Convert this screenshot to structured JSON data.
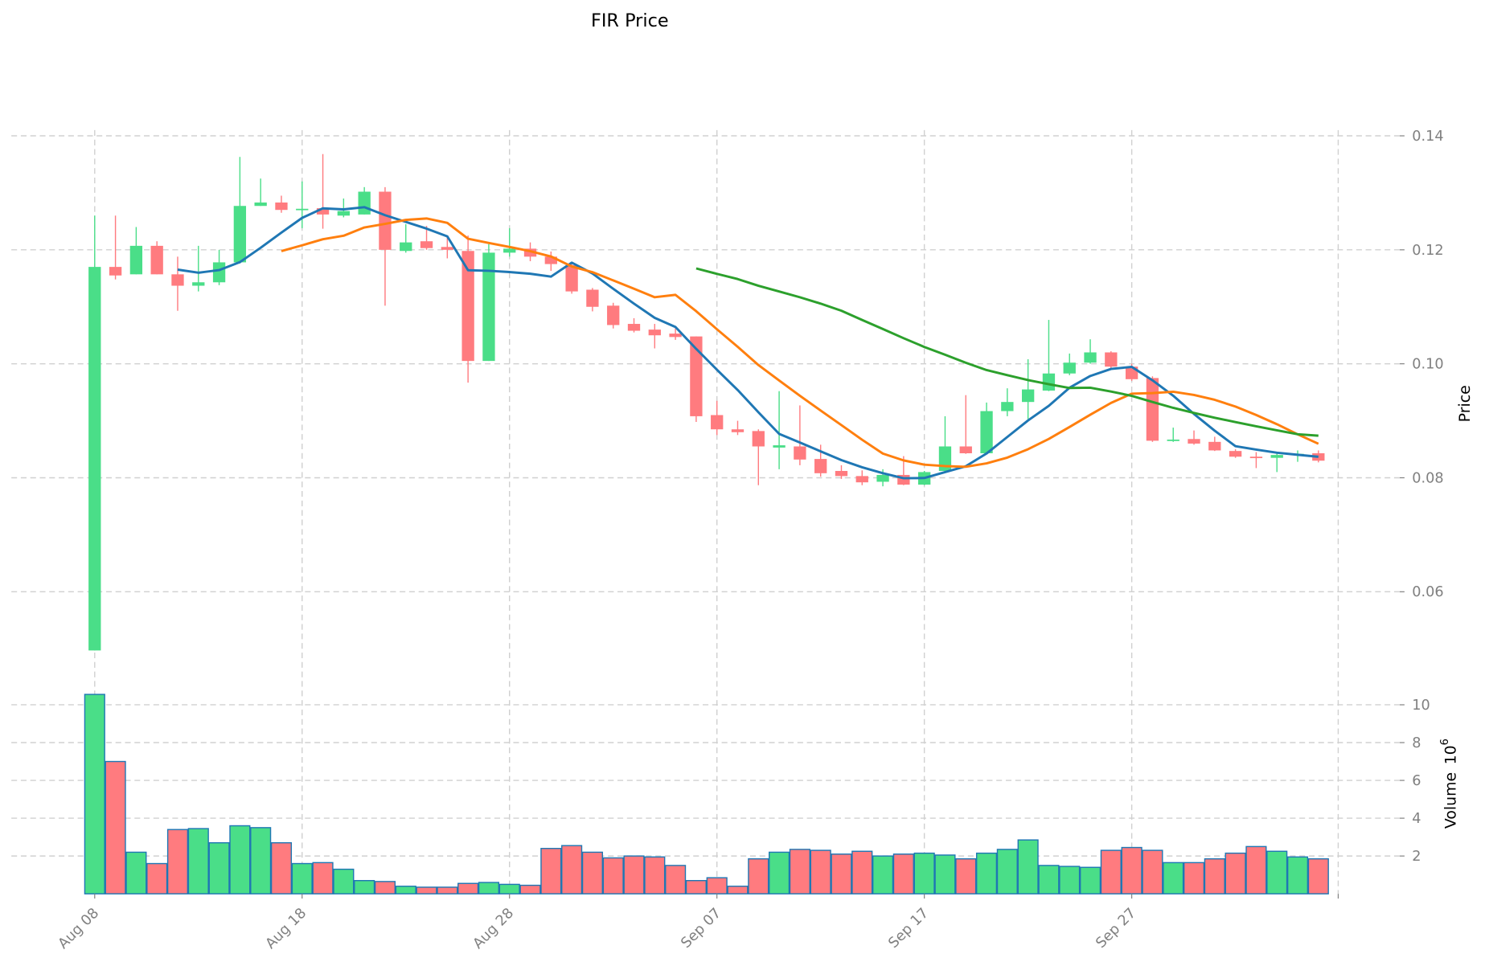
{
  "chart_data": {
    "type": "candlestick",
    "title": "FIR Price",
    "ylabel": "Price",
    "volume_label": "Volume",
    "volume_exponent_base": "10",
    "volume_exponent": "6",
    "start_date": "2024-08-08",
    "x_tick_labels": [
      "Aug 08",
      "Aug 18",
      "Aug 28",
      "Sep 07",
      "Sep 17",
      "Sep 27"
    ],
    "x_tick_day_index": [
      0,
      10,
      20,
      30,
      40,
      50
    ],
    "price_ylim": [
      0.045,
      0.141
    ],
    "price_ticks": [
      "0.06",
      "0.08",
      "0.10",
      "0.12",
      "0.14"
    ],
    "volume_ylim": [
      0,
      10.5
    ],
    "volume_ticks": [
      "2",
      "4",
      "6",
      "8",
      "10"
    ],
    "grid": true,
    "colors": {
      "up": "#4ade88",
      "down": "#ff7b7f",
      "volume_edge": "#1f77b4",
      "ma_short": "#1f77b4",
      "ma_mid": "#ff7f0e",
      "ma_long": "#2ca02c",
      "grid": "#d0d0d0",
      "tick": "#808080"
    },
    "moving_averages": [
      5,
      10,
      30
    ],
    "ohlc": [
      [
        0.0497,
        0.126,
        0.0497,
        0.117
      ],
      [
        0.117,
        0.126,
        0.1148,
        0.1155
      ],
      [
        0.1157,
        0.124,
        0.1157,
        0.1207
      ],
      [
        0.1207,
        0.1215,
        0.1157,
        0.1157
      ],
      [
        0.1157,
        0.1188,
        0.1093,
        0.1137
      ],
      [
        0.1137,
        0.1207,
        0.1127,
        0.1143
      ],
      [
        0.1143,
        0.12,
        0.1138,
        0.1178
      ],
      [
        0.1178,
        0.1363,
        0.1176,
        0.1277
      ],
      [
        0.1277,
        0.1325,
        0.1277,
        0.1283
      ],
      [
        0.1283,
        0.1295,
        0.1265,
        0.127
      ],
      [
        0.127,
        0.132,
        0.1238,
        0.1272
      ],
      [
        0.1273,
        0.1368,
        0.1237,
        0.1262
      ],
      [
        0.126,
        0.129,
        0.1257,
        0.1268
      ],
      [
        0.1262,
        0.131,
        0.1262,
        0.1302
      ],
      [
        0.1302,
        0.131,
        0.1102,
        0.12
      ],
      [
        0.1198,
        0.1245,
        0.1195,
        0.1213
      ],
      [
        0.1215,
        0.1242,
        0.12,
        0.1203
      ],
      [
        0.1205,
        0.1222,
        0.1185,
        0.12
      ],
      [
        0.1198,
        0.1225,
        0.0967,
        0.1005
      ],
      [
        0.1005,
        0.121,
        0.1005,
        0.1195
      ],
      [
        0.1195,
        0.1238,
        0.1188,
        0.1202
      ],
      [
        0.1202,
        0.1213,
        0.118,
        0.1188
      ],
      [
        0.1188,
        0.1197,
        0.1163,
        0.1175
      ],
      [
        0.1173,
        0.1178,
        0.1123,
        0.1127
      ],
      [
        0.113,
        0.1133,
        0.1092,
        0.11
      ],
      [
        0.1102,
        0.1107,
        0.1062,
        0.1068
      ],
      [
        0.107,
        0.108,
        0.1055,
        0.1058
      ],
      [
        0.106,
        0.107,
        0.1027,
        0.105
      ],
      [
        0.1053,
        0.1062,
        0.1042,
        0.1047
      ],
      [
        0.1048,
        0.1048,
        0.0898,
        0.0908
      ],
      [
        0.091,
        0.0935,
        0.0875,
        0.0885
      ],
      [
        0.0885,
        0.09,
        0.0875,
        0.088
      ],
      [
        0.0882,
        0.0885,
        0.0787,
        0.0855
      ],
      [
        0.0853,
        0.0952,
        0.0815,
        0.0857
      ],
      [
        0.0855,
        0.0927,
        0.0822,
        0.0832
      ],
      [
        0.0833,
        0.0858,
        0.0802,
        0.0808
      ],
      [
        0.0812,
        0.0822,
        0.0798,
        0.0803
      ],
      [
        0.0803,
        0.0813,
        0.0787,
        0.0792
      ],
      [
        0.0793,
        0.0815,
        0.0785,
        0.0805
      ],
      [
        0.0805,
        0.0838,
        0.0787,
        0.0788
      ],
      [
        0.0788,
        0.0812,
        0.0787,
        0.081
      ],
      [
        0.0812,
        0.0908,
        0.081,
        0.0855
      ],
      [
        0.0855,
        0.0945,
        0.0842,
        0.0843
      ],
      [
        0.0843,
        0.0932,
        0.0842,
        0.0917
      ],
      [
        0.0917,
        0.0957,
        0.0908,
        0.0933
      ],
      [
        0.0933,
        0.1008,
        0.0903,
        0.0955
      ],
      [
        0.0953,
        0.1077,
        0.0952,
        0.0983
      ],
      [
        0.0983,
        0.1018,
        0.098,
        0.1002
      ],
      [
        0.1002,
        0.1043,
        0.1,
        0.102
      ],
      [
        0.102,
        0.1022,
        0.0992,
        0.0995
      ],
      [
        0.0995,
        0.1,
        0.097,
        0.0973
      ],
      [
        0.0975,
        0.0978,
        0.0863,
        0.0865
      ],
      [
        0.0865,
        0.0888,
        0.0863,
        0.0867
      ],
      [
        0.0868,
        0.0883,
        0.0858,
        0.086
      ],
      [
        0.0863,
        0.0872,
        0.0847,
        0.0848
      ],
      [
        0.0847,
        0.085,
        0.0835,
        0.0837
      ],
      [
        0.0837,
        0.0845,
        0.0817,
        0.0835
      ],
      [
        0.0835,
        0.0845,
        0.081,
        0.084
      ],
      [
        0.084,
        0.0848,
        0.0828,
        0.0842
      ],
      [
        0.0843,
        0.0848,
        0.0827,
        0.083
      ]
    ],
    "volume_millions": [
      10.55,
      7.0,
      2.2,
      1.6,
      3.4,
      3.45,
      2.7,
      3.6,
      3.5,
      2.7,
      1.6,
      1.65,
      1.3,
      0.7,
      0.65,
      0.4,
      0.35,
      0.35,
      0.55,
      0.6,
      0.5,
      0.45,
      2.4,
      2.55,
      2.2,
      1.9,
      2.0,
      1.95,
      1.5,
      0.7,
      0.85,
      0.4,
      1.85,
      2.2,
      2.35,
      2.3,
      2.1,
      2.25,
      2.0,
      2.1,
      2.15,
      2.05,
      1.85,
      2.15,
      2.35,
      2.85,
      1.5,
      1.45,
      1.4,
      2.3,
      2.45,
      2.3,
      1.65,
      1.65,
      1.85,
      2.15,
      2.5,
      2.25,
      1.95,
      1.85
    ]
  }
}
